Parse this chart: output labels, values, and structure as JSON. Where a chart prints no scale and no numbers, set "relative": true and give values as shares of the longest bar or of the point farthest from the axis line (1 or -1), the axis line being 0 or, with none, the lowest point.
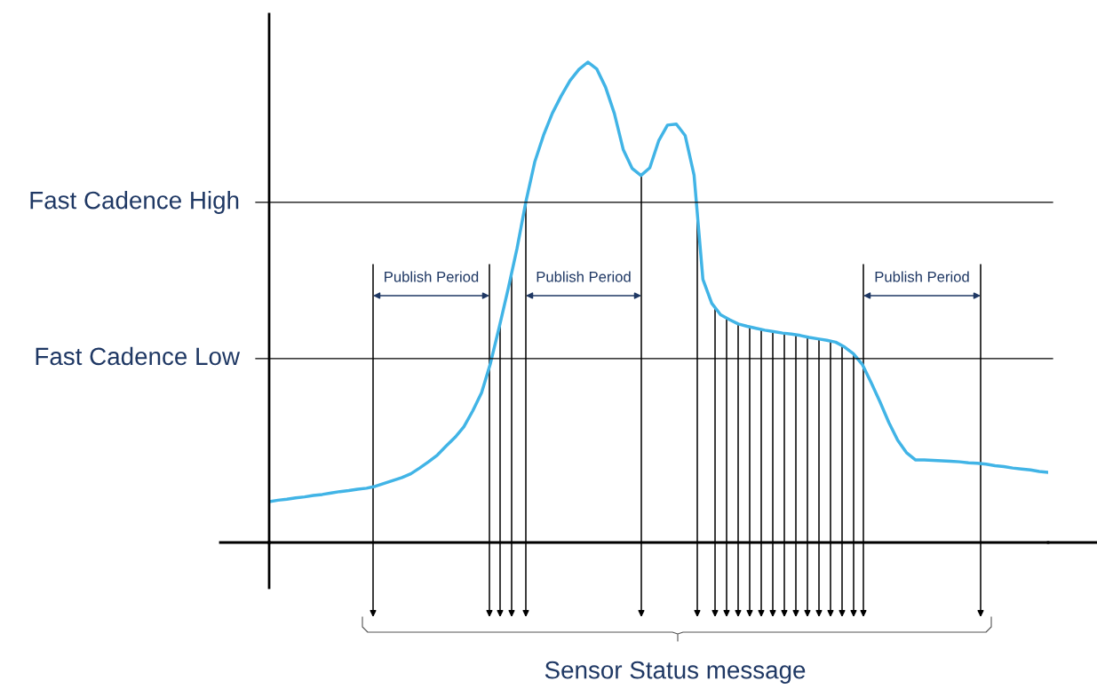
{
  "chart_data": {
    "type": "line",
    "relative": true,
    "categories": [
      null,
      null,
      null,
      null,
      null,
      null,
      null,
      null,
      null,
      null,
      null,
      null,
      null,
      null,
      null,
      null,
      null,
      null,
      null,
      null,
      null,
      null,
      null,
      null,
      null,
      null,
      null,
      null,
      null,
      null,
      null,
      null,
      null,
      null,
      null,
      null,
      null,
      null,
      null,
      null,
      null,
      null,
      null,
      null,
      null,
      null,
      null,
      null,
      null,
      null,
      null,
      null,
      null,
      null,
      null,
      null,
      null,
      null,
      null,
      null,
      null,
      null,
      null,
      null,
      null,
      null,
      null,
      null,
      null,
      null,
      null,
      null,
      null,
      null,
      null,
      null,
      null,
      null,
      null,
      null,
      null,
      null,
      null,
      null,
      null,
      null,
      null,
      null,
      null
    ],
    "series": [
      {
        "color": "#41b4e6",
        "values": [
          0.085,
          0.088,
          0.09,
          0.093,
          0.095,
          0.098,
          0.1,
          0.103,
          0.106,
          0.108,
          0.111,
          0.113,
          0.117,
          0.123,
          0.129,
          0.135,
          0.143,
          0.155,
          0.168,
          0.182,
          0.201,
          0.219,
          0.241,
          0.274,
          0.312,
          0.373,
          0.449,
          0.528,
          0.612,
          0.709,
          0.792,
          0.848,
          0.894,
          0.93,
          0.962,
          0.985,
          1,
          0.986,
          0.948,
          0.893,
          0.818,
          0.779,
          0.764,
          0.78,
          0.836,
          0.869,
          0.871,
          0.847,
          0.765,
          0.548,
          0.498,
          0.474,
          0.464,
          0.455,
          0.45,
          0.446,
          0.442,
          0.439,
          0.436,
          0.434,
          0.431,
          0.427,
          0.424,
          0.421,
          0.417,
          0.407,
          0.393,
          0.371,
          0.333,
          0.293,
          0.25,
          0.213,
          0.187,
          0.172,
          0.172,
          0.171,
          0.17,
          0.169,
          0.168,
          0.166,
          0.165,
          0.163,
          0.16,
          0.158,
          0.155,
          0.153,
          0.151,
          0.148,
          0.146
        ]
      }
    ],
    "ref_lines": [
      {
        "axis": "y",
        "value": 0.708,
        "label": "Fast Cadence High",
        "color": "#000000"
      },
      {
        "axis": "y",
        "value": 0.383,
        "label": "Fast Cadence Low",
        "color": "#000000"
      }
    ],
    "annotations": [
      "Publish Period",
      "Publish Period",
      "Publish Period",
      "Sensor Status message"
    ]
  }
}
